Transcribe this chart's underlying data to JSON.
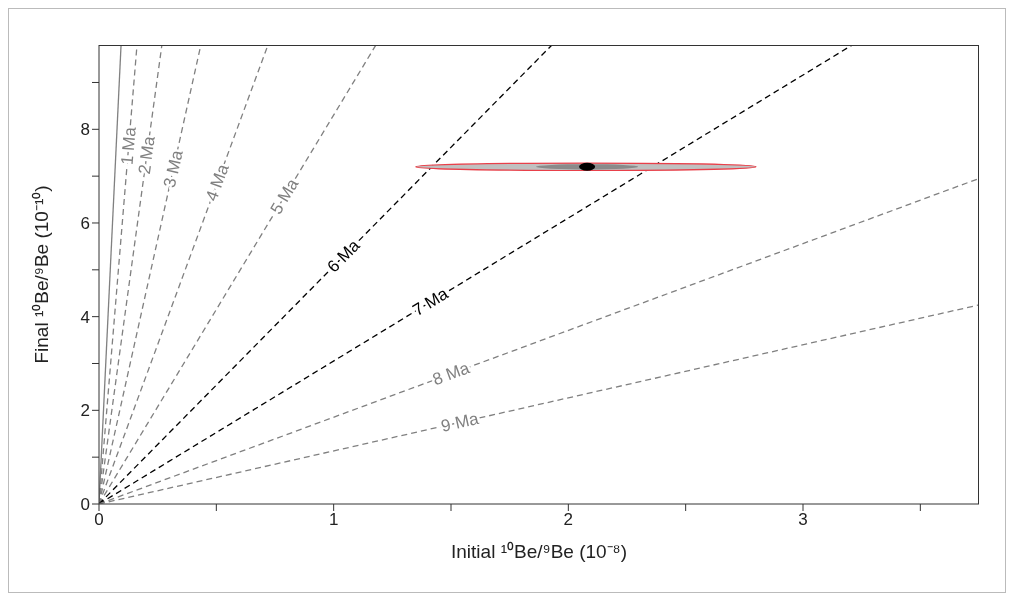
{
  "chart_data": {
    "type": "line",
    "xlabel": "Initial ¹⁰Be/⁹Be (10⁻⁸)",
    "ylabel": "Final ¹⁰Be/⁹Be (10⁻¹⁰)",
    "xlim": [
      0,
      3.75
    ],
    "ylim": [
      0,
      9.8
    ],
    "xticks": [
      0,
      {
        "value": 0.5,
        "label": null
      },
      1,
      {
        "value": 1.5,
        "label": null
      },
      2,
      {
        "value": 2.5,
        "label": null
      },
      3,
      {
        "value": 3.5,
        "label": null
      }
    ],
    "yticks": [
      0,
      {
        "value": 1,
        "label": null
      },
      2,
      {
        "value": 3,
        "label": null
      },
      4,
      {
        "value": 5,
        "label": null
      },
      6,
      {
        "value": 7,
        "label": null
      },
      8,
      {
        "value": 9,
        "label": null
      }
    ],
    "marker": "none",
    "series": [
      {
        "color": "#808080",
        "line_style": "solid",
        "x": [
          0,
          0.094
        ],
        "values": [
          0,
          9.8
        ]
      },
      {
        "name": "1 Ma",
        "color": "#808080",
        "line_style": "dashed",
        "x": [
          0,
          0.162
        ],
        "values": [
          0,
          9.8
        ]
      },
      {
        "name": "2 Ma",
        "color": "#808080",
        "line_style": "dashed",
        "x": [
          0,
          0.268
        ],
        "values": [
          0,
          9.8
        ]
      },
      {
        "name": "3 Ma",
        "color": "#808080",
        "line_style": "dashed",
        "x": [
          0,
          0.434
        ],
        "values": [
          0,
          9.8
        ]
      },
      {
        "name": "4 Ma",
        "color": "#808080",
        "line_style": "dashed",
        "x": [
          0,
          0.72
        ],
        "values": [
          0,
          9.8
        ]
      },
      {
        "name": "5 Ma",
        "color": "#808080",
        "line_style": "dashed",
        "x": [
          0,
          1.18
        ],
        "values": [
          0,
          9.8
        ]
      },
      {
        "name": "6 Ma",
        "color": "#000000",
        "line_style": "dashed",
        "x": [
          0,
          1.93
        ],
        "values": [
          0,
          9.8
        ]
      },
      {
        "name": "7 Ma",
        "color": "#000000",
        "line_style": "dashed",
        "x": [
          0,
          3.21
        ],
        "values": [
          0,
          9.8
        ]
      },
      {
        "name": "8 Ma",
        "color": "#808080",
        "line_style": "dashed",
        "x": [
          0,
          3.75
        ],
        "values": [
          0,
          6.95
        ]
      },
      {
        "name": "9 Ma",
        "color": "#808080",
        "line_style": "dashed",
        "x": [
          0,
          3.75
        ],
        "values": [
          0,
          4.25
        ]
      },
      {
        "type": "scatter",
        "color": "#000000",
        "marker": "circle",
        "x": [
          2.08
        ],
        "values": [
          7.2
        ],
        "xerrors": [
          [
            1.35,
            2.8
          ]
        ],
        "errors": [
          [
            7.12,
            7.28
          ]
        ]
      }
    ]
  }
}
